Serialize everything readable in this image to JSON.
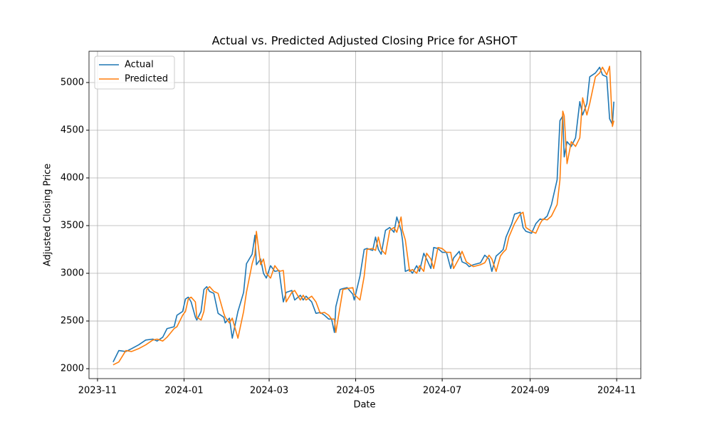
{
  "chart_data": {
    "type": "line",
    "title": "Actual vs. Predicted Adjusted Closing Price for ASHOT",
    "x_label": "Date",
    "y_label": "Adjusted Closing Price",
    "x": [
      11,
      15,
      20,
      24,
      29,
      34,
      39,
      42,
      46,
      49,
      54,
      56,
      60,
      62,
      64,
      66,
      69,
      70,
      73,
      75,
      77,
      79,
      82,
      85,
      89,
      90,
      93,
      95,
      99,
      103,
      105,
      109,
      111,
      112,
      115,
      117,
      119,
      122,
      125,
      128,
      131,
      133,
      137,
      139,
      143,
      145,
      147,
      151,
      154,
      157,
      160,
      163,
      165,
      167,
      168,
      171,
      173,
      176,
      180,
      181,
      185,
      188,
      190,
      194,
      196,
      198,
      200,
      203,
      206,
      209,
      211,
      214,
      215,
      217,
      220,
      222,
      225,
      227,
      230,
      232,
      235,
      237,
      240,
      243,
      246,
      249,
      251,
      255,
      257,
      260,
      262,
      265,
      270,
      273,
      276,
      278,
      281,
      284,
      286,
      288,
      290,
      292,
      294,
      298,
      300,
      302,
      306,
      309,
      312,
      314,
      317,
      320,
      324,
      326,
      328,
      329,
      331,
      334,
      337,
      340,
      342,
      345,
      347,
      351,
      354,
      356,
      359,
      361,
      363,
      364
    ],
    "series": [
      {
        "name": "Actual",
        "color": "#1f77b4",
        "values": [
          2070,
          2190,
          2180,
          2210,
          2250,
          2300,
          2310,
          2290,
          2330,
          2420,
          2440,
          2560,
          2600,
          2730,
          2750,
          2700,
          2540,
          2510,
          2600,
          2830,
          2860,
          2810,
          2790,
          2580,
          2540,
          2480,
          2530,
          2320,
          2600,
          2800,
          3100,
          3200,
          3400,
          3090,
          3150,
          3000,
          2950,
          3080,
          3020,
          3030,
          2700,
          2800,
          2820,
          2720,
          2770,
          2720,
          2760,
          2700,
          2580,
          2590,
          2560,
          2520,
          2520,
          2380,
          2650,
          2830,
          2840,
          2850,
          2780,
          2720,
          2970,
          3250,
          3260,
          3240,
          3380,
          3250,
          3200,
          3450,
          3480,
          3430,
          3590,
          3450,
          3350,
          3020,
          3040,
          3000,
          3080,
          3020,
          3210,
          3150,
          3050,
          3270,
          3260,
          3220,
          3220,
          3050,
          3160,
          3230,
          3120,
          3100,
          3070,
          3090,
          3110,
          3190,
          3150,
          3020,
          3180,
          3220,
          3250,
          3380,
          3450,
          3520,
          3620,
          3640,
          3480,
          3440,
          3420,
          3520,
          3570,
          3560,
          3600,
          3720,
          3980,
          4600,
          4650,
          4220,
          4380,
          4330,
          4420,
          4800,
          4660,
          4780,
          5060,
          5100,
          5160,
          5080,
          5060,
          4620,
          4560,
          4800
        ]
      },
      {
        "name": "Predicted",
        "color": "#ff7f0e",
        "values": [
          2040,
          2070,
          2190,
          2180,
          2210,
          2250,
          2300,
          2310,
          2290,
          2330,
          2420,
          2440,
          2560,
          2600,
          2730,
          2750,
          2700,
          2540,
          2510,
          2600,
          2830,
          2860,
          2810,
          2790,
          2580,
          2540,
          2480,
          2530,
          2320,
          2600,
          2800,
          3100,
          3200,
          3440,
          3090,
          3150,
          3000,
          2950,
          3080,
          3020,
          3030,
          2700,
          2800,
          2820,
          2720,
          2770,
          2720,
          2760,
          2700,
          2580,
          2590,
          2560,
          2520,
          2520,
          2380,
          2650,
          2830,
          2840,
          2850,
          2780,
          2720,
          2970,
          3250,
          3260,
          3240,
          3380,
          3250,
          3200,
          3450,
          3480,
          3430,
          3590,
          3450,
          3350,
          3020,
          3040,
          3000,
          3080,
          3020,
          3210,
          3150,
          3050,
          3270,
          3260,
          3220,
          3220,
          3050,
          3160,
          3230,
          3120,
          3100,
          3070,
          3090,
          3110,
          3190,
          3150,
          3020,
          3180,
          3220,
          3250,
          3380,
          3450,
          3520,
          3620,
          3640,
          3480,
          3440,
          3420,
          3520,
          3570,
          3560,
          3600,
          3720,
          3980,
          4700,
          4650,
          4150,
          4380,
          4330,
          4420,
          4840,
          4660,
          4780,
          5060,
          5100,
          5160,
          5080,
          5170,
          4540,
          4600
        ]
      }
    ],
    "xlim": [
      -6,
      383
    ],
    "xticks": [
      {
        "value": 0,
        "label": "2023-11"
      },
      {
        "value": 61,
        "label": "2024-01"
      },
      {
        "value": 121,
        "label": "2024-03"
      },
      {
        "value": 182,
        "label": "2024-05"
      },
      {
        "value": 243,
        "label": "2024-07"
      },
      {
        "value": 305,
        "label": "2024-09"
      },
      {
        "value": 366,
        "label": "2024-11"
      }
    ],
    "ylim": [
      1896,
      5328
    ],
    "yticks": [
      2000,
      2500,
      3000,
      3500,
      4000,
      4500,
      5000
    ],
    "grid": true,
    "legend": "upper left"
  }
}
